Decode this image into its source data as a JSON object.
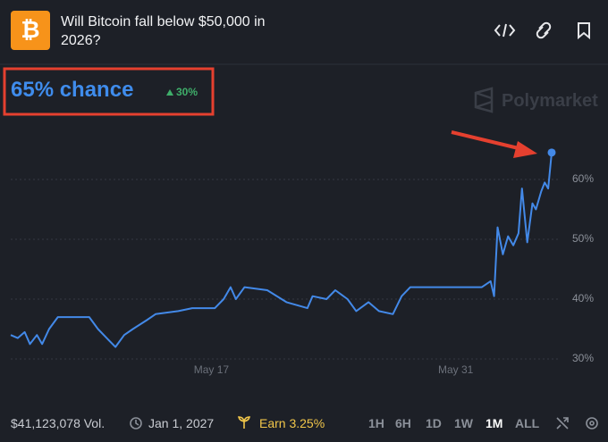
{
  "header": {
    "title": "Will Bitcoin fall below $50,000 in 2026?"
  },
  "headline": {
    "chance": "65% chance",
    "change": "30%",
    "brand": "Polymarket"
  },
  "chart_data": {
    "type": "line",
    "color": "#4389e8",
    "grid": true,
    "x": [
      5.5,
      5.9,
      6.3,
      6.6,
      7.0,
      7.3,
      7.7,
      8.2,
      10.0,
      10.5,
      11.0,
      11.5,
      12.0,
      12.5,
      13.3,
      13.8,
      15.1,
      15.9,
      17.2,
      17.7,
      18.1,
      18.4,
      18.9,
      20.2,
      21.3,
      22.5,
      22.8,
      23.6,
      24.1,
      24.8,
      25.3,
      26.0,
      26.6,
      27.4,
      27.9,
      28.4,
      30.5,
      32.5,
      33.0,
      33.2,
      33.4,
      33.7,
      34.0,
      34.3,
      34.6,
      34.8,
      35.1,
      35.4,
      35.6,
      35.9,
      36.1,
      36.3,
      36.5
    ],
    "values": [
      34,
      33.5,
      34.5,
      32.5,
      34,
      32.5,
      35,
      37,
      37,
      35,
      33.5,
      32,
      34,
      35,
      36.5,
      37.5,
      38,
      38.5,
      38.5,
      40,
      42,
      40,
      42,
      41.5,
      39.5,
      38.5,
      40.5,
      40,
      41.5,
      40,
      38,
      39.5,
      38,
      37.5,
      40.5,
      42,
      42,
      42,
      43,
      40.5,
      52,
      47.5,
      50.5,
      49,
      51,
      58.5,
      49.5,
      56,
      55,
      58,
      59.5,
      58.5,
      64.5
    ],
    "xlim": [
      5.5,
      36.5
    ],
    "ylim": [
      29.5,
      70
    ],
    "xticks": [
      {
        "value": 17,
        "label": "May 17"
      },
      {
        "value": 31,
        "label": "May 31"
      }
    ],
    "yticks": [
      {
        "value": 30,
        "label": "30%"
      },
      {
        "value": 40,
        "label": "40%"
      },
      {
        "value": 50,
        "label": "50%"
      },
      {
        "value": 60,
        "label": "60%"
      }
    ]
  },
  "footer": {
    "volume": "$41,123,078 Vol.",
    "date": "Jan 1, 2027",
    "earn": "Earn 3.25%",
    "ranges": [
      "1H",
      "6H",
      "1D",
      "1W",
      "1M",
      "ALL"
    ]
  }
}
